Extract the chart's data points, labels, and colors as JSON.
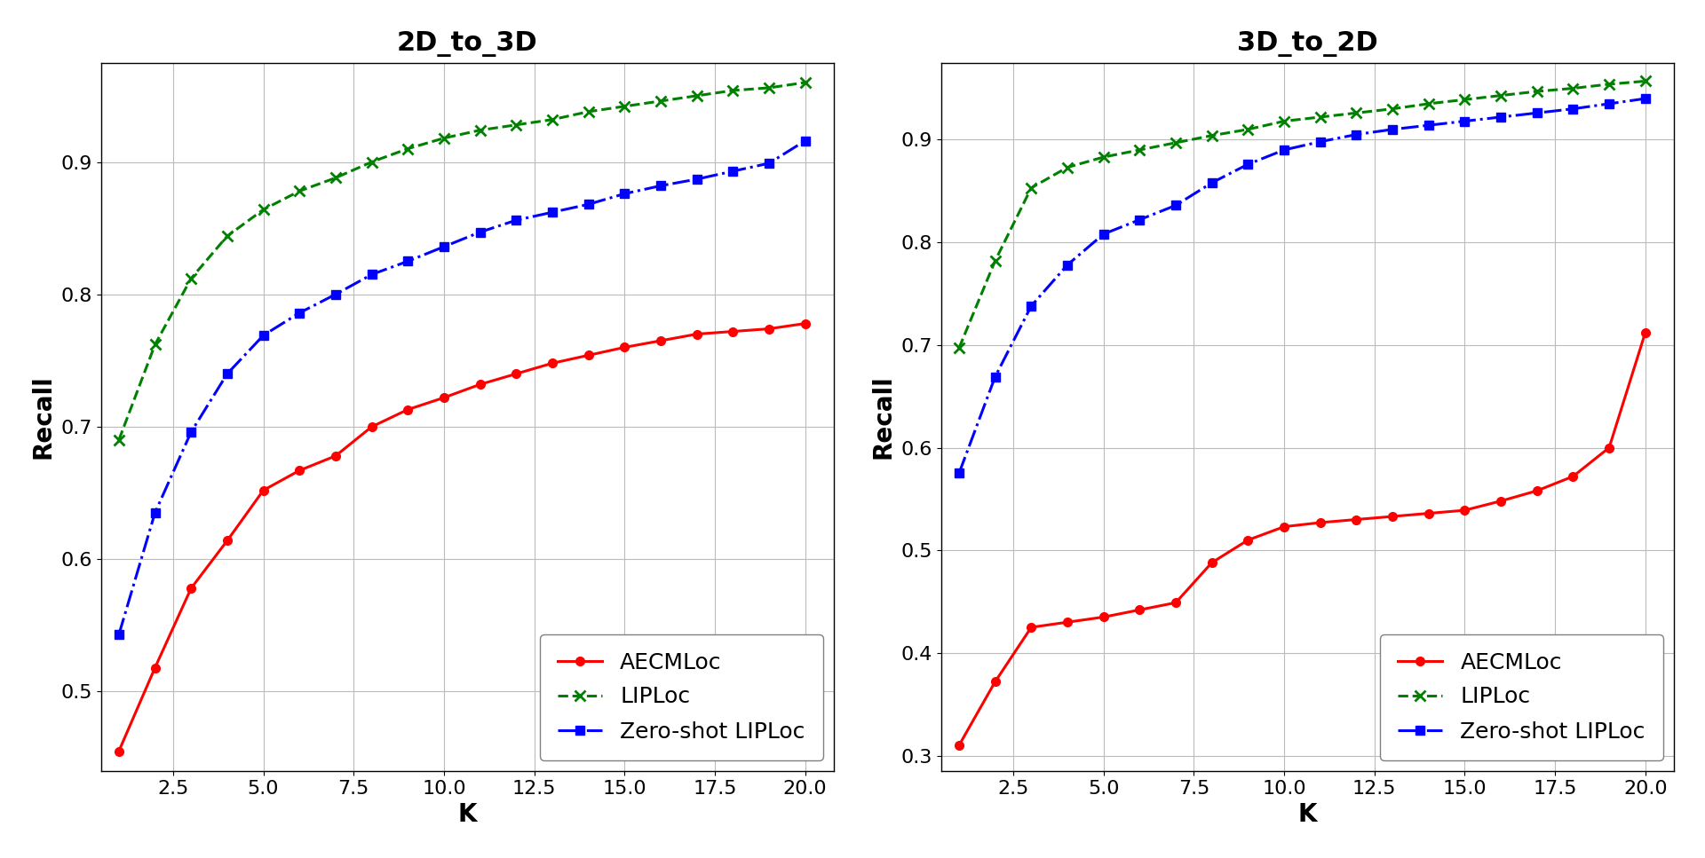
{
  "title_left": "2D_to_3D",
  "title_right": "3D_to_2D",
  "xlabel": "K",
  "ylabel": "Recall",
  "k_values": [
    1,
    2,
    3,
    4,
    5,
    6,
    7,
    8,
    9,
    10,
    11,
    12,
    13,
    14,
    15,
    16,
    17,
    18,
    19,
    20
  ],
  "left_AECMLoc": [
    0.455,
    0.518,
    0.578,
    0.614,
    0.652,
    0.667,
    0.678,
    0.7,
    0.713,
    0.722,
    0.732,
    0.74,
    0.748,
    0.754,
    0.76,
    0.765,
    0.77,
    0.772,
    0.774,
    0.778
  ],
  "left_LIPLoc": [
    0.69,
    0.762,
    0.812,
    0.844,
    0.864,
    0.878,
    0.888,
    0.9,
    0.91,
    0.918,
    0.924,
    0.928,
    0.932,
    0.938,
    0.942,
    0.946,
    0.95,
    0.954,
    0.956,
    0.96
  ],
  "left_ZeroShot": [
    0.543,
    0.635,
    0.696,
    0.74,
    0.769,
    0.786,
    0.8,
    0.815,
    0.825,
    0.836,
    0.847,
    0.856,
    0.862,
    0.868,
    0.876,
    0.882,
    0.887,
    0.893,
    0.899,
    0.916
  ],
  "right_AECMLoc": [
    0.31,
    0.372,
    0.425,
    0.43,
    0.435,
    0.442,
    0.449,
    0.488,
    0.51,
    0.523,
    0.527,
    0.53,
    0.533,
    0.536,
    0.539,
    0.548,
    0.558,
    0.572,
    0.6,
    0.712
  ],
  "right_LIPLoc": [
    0.697,
    0.782,
    0.853,
    0.873,
    0.883,
    0.89,
    0.897,
    0.904,
    0.91,
    0.918,
    0.922,
    0.926,
    0.93,
    0.935,
    0.939,
    0.943,
    0.947,
    0.95,
    0.954,
    0.957
  ],
  "right_ZeroShot": [
    0.575,
    0.669,
    0.738,
    0.778,
    0.808,
    0.822,
    0.836,
    0.858,
    0.876,
    0.89,
    0.898,
    0.905,
    0.91,
    0.914,
    0.918,
    0.922,
    0.926,
    0.93,
    0.935,
    0.94
  ],
  "color_AECMLoc": "#ff0000",
  "color_LIPLoc": "#008000",
  "color_ZeroShot": "#0000ff",
  "xticks": [
    2.5,
    5.0,
    7.5,
    10.0,
    12.5,
    15.0,
    17.5,
    20.0
  ],
  "xtick_labels": [
    "2.5",
    "5.0",
    "7.5",
    "10.0",
    "12.5",
    "15.0",
    "17.5",
    "20.0"
  ],
  "left_ylim": [
    0.44,
    0.975
  ],
  "right_ylim": [
    0.285,
    0.975
  ],
  "left_yticks": [
    0.5,
    0.6,
    0.7,
    0.8,
    0.9
  ],
  "right_yticks": [
    0.3,
    0.4,
    0.5,
    0.6,
    0.7,
    0.8,
    0.9
  ],
  "title_fontsize": 22,
  "label_fontsize": 20,
  "tick_fontsize": 16,
  "legend_fontsize": 18,
  "linewidth": 2.2,
  "markersize": 7
}
